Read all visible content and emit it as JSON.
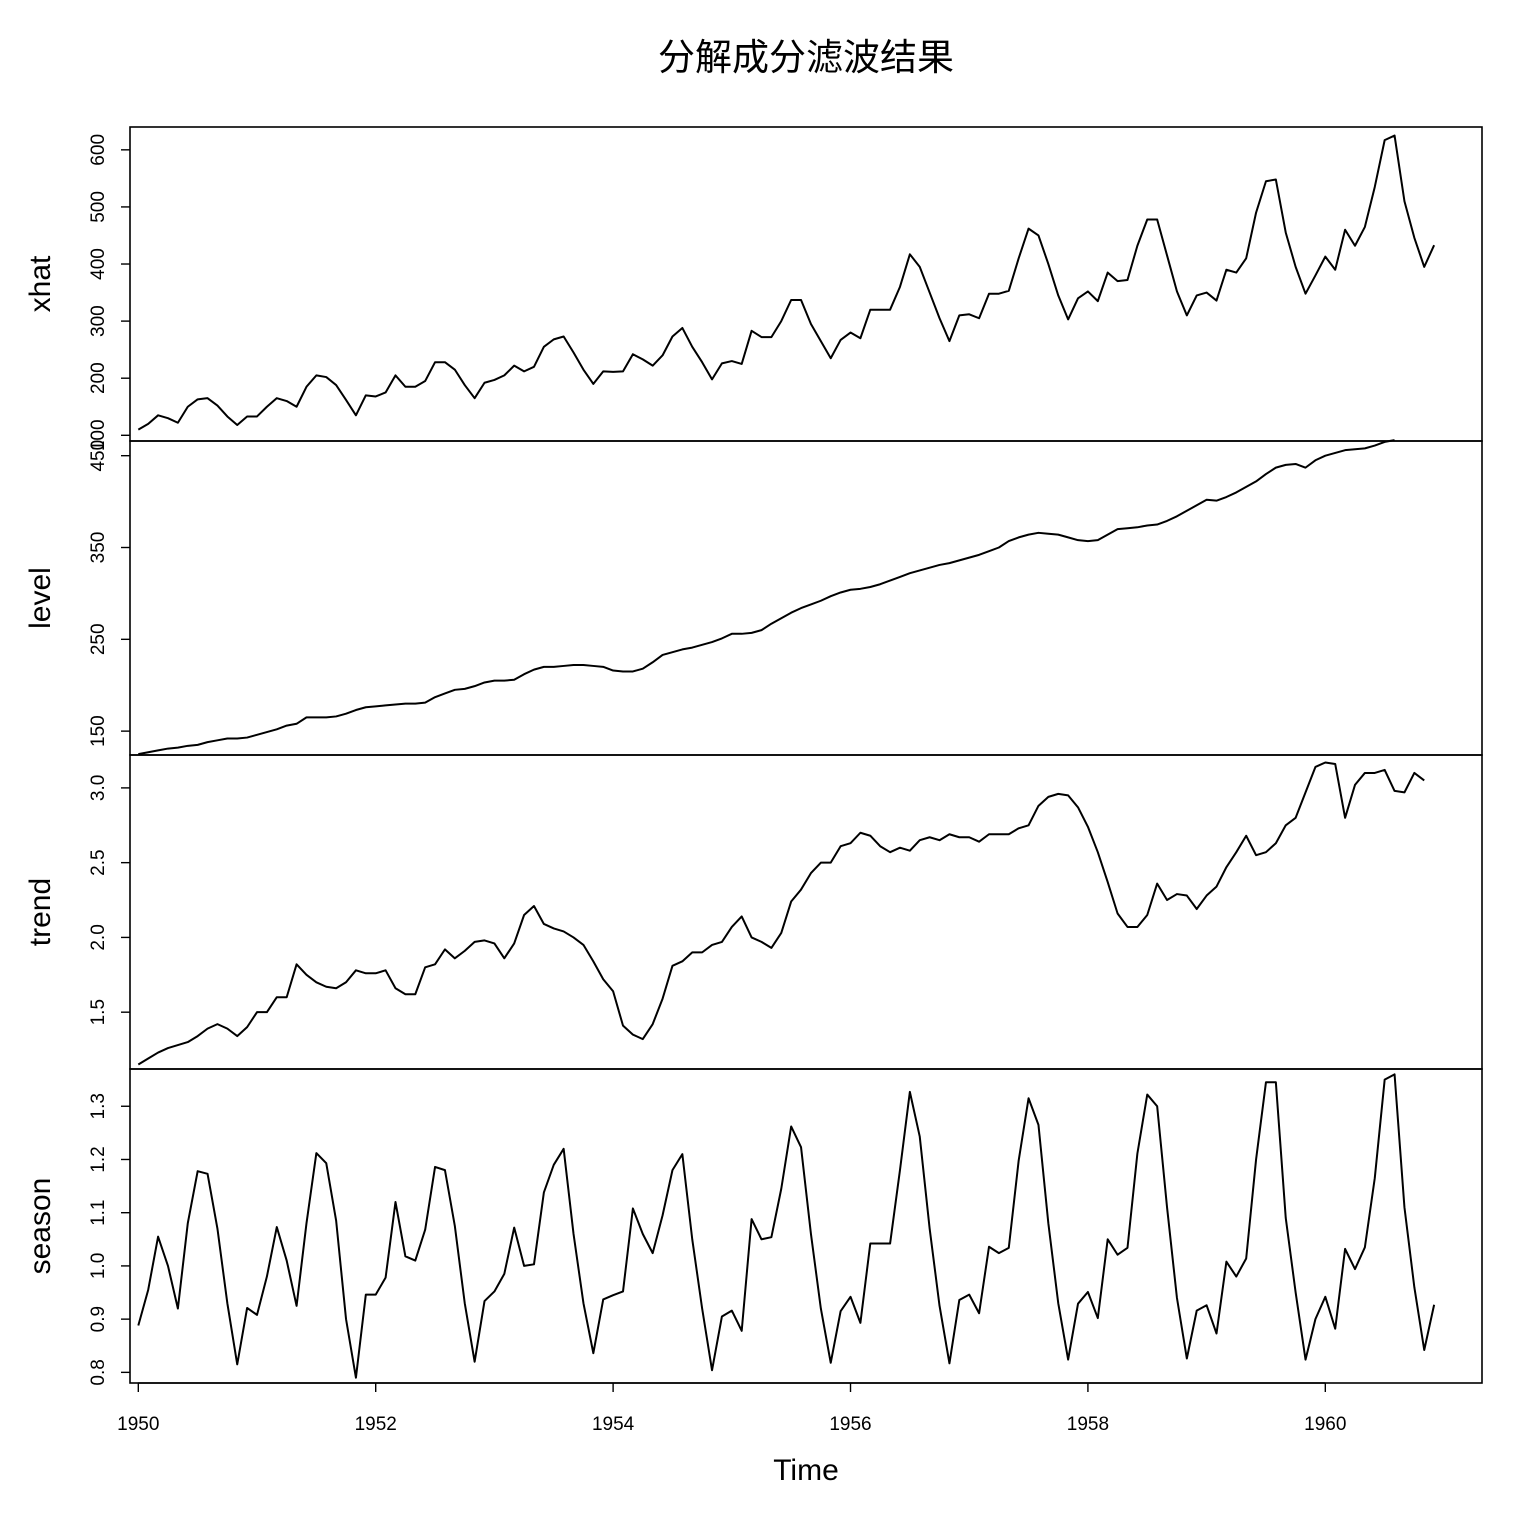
{
  "chart_data": {
    "type": "line",
    "title": "分解成分滤波结果",
    "xlabel": "Time",
    "xlim": [
      1949.93,
      1961.32
    ],
    "x_ticks": [
      "1950",
      "1952",
      "1954",
      "1956",
      "1958",
      "1960"
    ],
    "x_start": 1950,
    "frequency": 12,
    "panels": [
      {
        "name": "xhat",
        "ylabel": "xhat",
        "ylim": [
          90,
          640
        ],
        "y_ticks": [
          "100",
          "200",
          "300",
          "400",
          "500",
          "600"
        ],
        "values": [
          110,
          120,
          135,
          130,
          122,
          150,
          163,
          165,
          152,
          133,
          118,
          133,
          133,
          150,
          165,
          160,
          150,
          185,
          205,
          202,
          188,
          162,
          135,
          170,
          168,
          175,
          205,
          185,
          185,
          195,
          228,
          228,
          215,
          188,
          165,
          192,
          197,
          205,
          222,
          212,
          220,
          255,
          268,
          273,
          245,
          215,
          190,
          212,
          211,
          212,
          242,
          233,
          222,
          240,
          273,
          288,
          255,
          228,
          198,
          226,
          230,
          225,
          283,
          272,
          272,
          300,
          337,
          337,
          295,
          265,
          235,
          267,
          280,
          270,
          320,
          320,
          320,
          360,
          417,
          395,
          350,
          305,
          265,
          310,
          312,
          305,
          348,
          348,
          353,
          410,
          462,
          450,
          400,
          345,
          303,
          340,
          352,
          335,
          385,
          370,
          372,
          432,
          478,
          478,
          415,
          352,
          310,
          345,
          350,
          336,
          390,
          385,
          410,
          490,
          545,
          548,
          455,
          395,
          348,
          380,
          413,
          390,
          460,
          432,
          465,
          535,
          617,
          625,
          510,
          446,
          395,
          433
        ]
      },
      {
        "name": "level",
        "ylabel": "level",
        "ylim": [
          124,
          466
        ],
        "y_ticks": [
          "150",
          "250",
          "350",
          "450"
        ],
        "values": [
          125,
          127,
          129,
          131,
          132,
          134,
          135,
          138,
          140,
          142,
          142,
          143,
          146,
          149,
          152,
          156,
          158,
          165,
          165,
          165,
          166,
          169,
          173,
          176,
          177,
          178,
          179,
          180,
          180,
          181,
          187,
          191,
          195,
          196,
          199,
          203,
          205,
          205,
          206,
          212,
          217,
          220,
          220,
          221,
          222,
          222,
          221,
          220,
          216,
          215,
          215,
          218,
          225,
          233,
          236,
          239,
          241,
          244,
          247,
          251,
          256,
          256,
          257,
          260,
          267,
          273,
          279,
          284,
          288,
          292,
          297,
          301,
          304,
          305,
          307,
          310,
          314,
          318,
          322,
          325,
          328,
          331,
          333,
          336,
          339,
          342,
          346,
          350,
          357,
          361,
          364,
          366,
          365,
          364,
          361,
          358,
          357,
          358,
          364,
          370,
          371,
          372,
          374,
          375,
          379,
          384,
          390,
          396,
          402,
          401,
          405,
          410,
          416,
          422,
          430,
          437,
          440,
          441,
          437,
          445,
          450,
          453,
          456,
          457,
          458,
          461,
          465,
          467
        ]
      },
      {
        "name": "trend",
        "ylabel": "trend",
        "ylim": [
          1.12,
          3.22
        ],
        "y_ticks": [
          "1.5",
          "2.0",
          "2.5",
          "3.0"
        ],
        "values": [
          1.15,
          1.19,
          1.23,
          1.26,
          1.28,
          1.3,
          1.34,
          1.39,
          1.42,
          1.39,
          1.34,
          1.4,
          1.5,
          1.5,
          1.6,
          1.6,
          1.82,
          1.75,
          1.7,
          1.67,
          1.66,
          1.7,
          1.78,
          1.76,
          1.76,
          1.78,
          1.66,
          1.62,
          1.62,
          1.8,
          1.82,
          1.92,
          1.86,
          1.91,
          1.97,
          1.98,
          1.96,
          1.86,
          1.96,
          2.15,
          2.21,
          2.09,
          2.06,
          2.04,
          2.0,
          1.95,
          1.84,
          1.72,
          1.64,
          1.41,
          1.35,
          1.32,
          1.42,
          1.59,
          1.81,
          1.84,
          1.9,
          1.9,
          1.95,
          1.97,
          2.07,
          2.14,
          2.0,
          1.97,
          1.93,
          2.03,
          2.24,
          2.32,
          2.43,
          2.5,
          2.5,
          2.61,
          2.63,
          2.7,
          2.68,
          2.61,
          2.57,
          2.6,
          2.58,
          2.65,
          2.67,
          2.65,
          2.69,
          2.67,
          2.67,
          2.64,
          2.69,
          2.69,
          2.69,
          2.73,
          2.75,
          2.88,
          2.94,
          2.96,
          2.95,
          2.87,
          2.74,
          2.57,
          2.37,
          2.16,
          2.07,
          2.07,
          2.15,
          2.36,
          2.25,
          2.29,
          2.28,
          2.19,
          2.28,
          2.34,
          2.47,
          2.57,
          2.68,
          2.55,
          2.57,
          2.63,
          2.75,
          2.8,
          2.97,
          3.14,
          3.17,
          3.16,
          2.8,
          3.02,
          3.1,
          3.1,
          3.12,
          2.98,
          2.97,
          3.1,
          3.05
        ]
      },
      {
        "name": "season",
        "ylabel": "season",
        "ylim": [
          0.78,
          1.37
        ],
        "y_ticks": [
          "0.8",
          "0.9",
          "1.0",
          "1.1",
          "1.2",
          "1.3"
        ],
        "values": [
          0.888,
          0.955,
          1.055,
          1.0,
          0.92,
          1.08,
          1.178,
          1.173,
          1.07,
          0.93,
          0.815,
          0.921,
          0.908,
          0.98,
          1.073,
          1.01,
          0.925,
          1.08,
          1.212,
          1.193,
          1.085,
          0.9,
          0.79,
          0.946,
          0.946,
          0.978,
          1.12,
          1.018,
          1.01,
          1.068,
          1.186,
          1.18,
          1.075,
          0.93,
          0.82,
          0.934,
          0.952,
          0.985,
          1.072,
          1.0,
          1.003,
          1.138,
          1.19,
          1.22,
          1.06,
          0.93,
          0.836,
          0.937,
          0.945,
          0.952,
          1.108,
          1.06,
          1.024,
          1.095,
          1.18,
          1.21,
          1.05,
          0.92,
          0.804,
          0.905,
          0.916,
          0.878,
          1.088,
          1.05,
          1.054,
          1.145,
          1.262,
          1.223,
          1.06,
          0.92,
          0.818,
          0.915,
          0.942,
          0.893,
          1.042,
          1.042,
          1.042,
          1.18,
          1.327,
          1.243,
          1.07,
          0.925,
          0.817,
          0.936,
          0.946,
          0.911,
          1.036,
          1.024,
          1.034,
          1.198,
          1.315,
          1.265,
          1.08,
          0.93,
          0.824,
          0.929,
          0.951,
          0.902,
          1.05,
          1.021,
          1.034,
          1.211,
          1.322,
          1.3,
          1.11,
          0.94,
          0.826,
          0.916,
          0.926,
          0.873,
          1.008,
          0.98,
          1.014,
          1.2,
          1.345,
          1.345,
          1.09,
          0.95,
          0.824,
          0.9,
          0.942,
          0.882,
          1.032,
          0.994,
          1.035,
          1.165,
          1.35,
          1.36,
          1.11,
          0.96,
          0.842,
          0.927
        ]
      }
    ],
    "line_color": "#000000",
    "background": "#ffffff",
    "grid": false,
    "legend": "none"
  }
}
